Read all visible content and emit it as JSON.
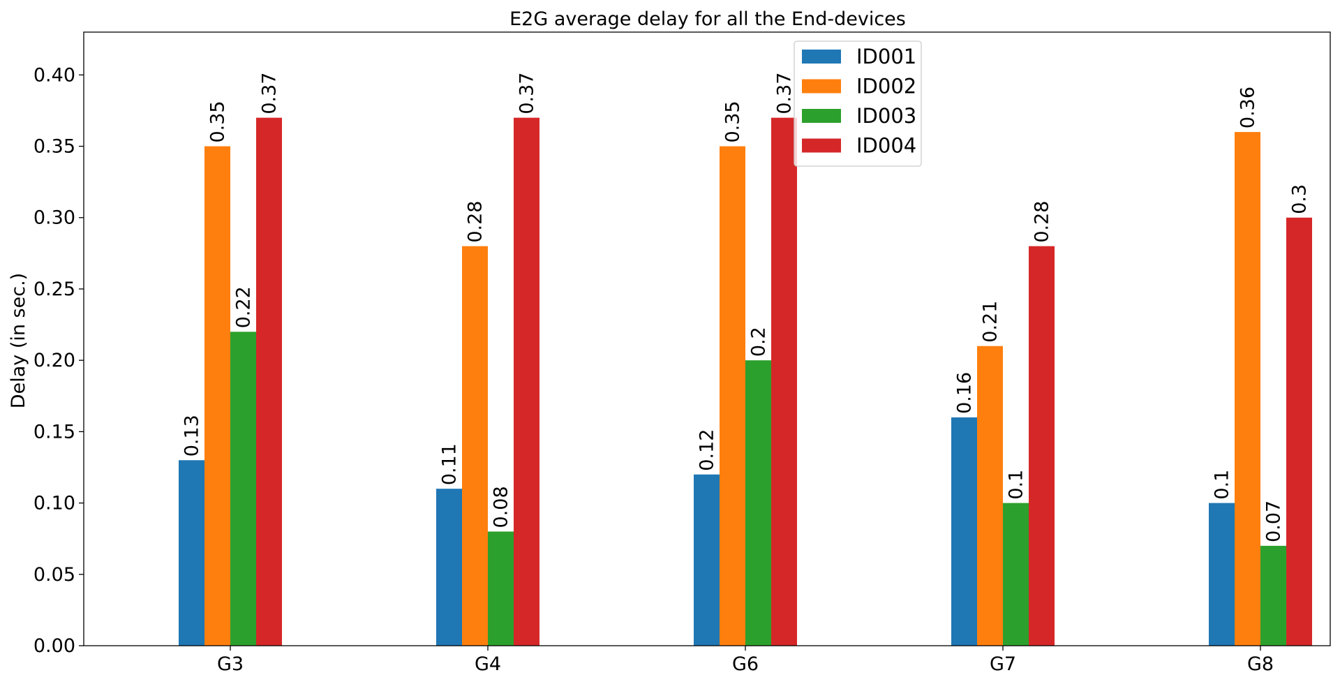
{
  "chart_data": {
    "type": "bar",
    "title": "E2G average delay for all the End-devices",
    "xlabel": "",
    "ylabel": "Delay (in sec.)",
    "categories": [
      "G3",
      "G4",
      "G6",
      "G7",
      "G8"
    ],
    "series": [
      {
        "name": "ID001",
        "color": "#1f77b4",
        "values": [
          0.13,
          0.11,
          0.12,
          0.16,
          0.1
        ],
        "labels": [
          "0.13",
          "0.11",
          "0.12",
          "0.16",
          "0.1"
        ]
      },
      {
        "name": "ID002",
        "color": "#ff7f0e",
        "values": [
          0.35,
          0.28,
          0.35,
          0.21,
          0.36
        ],
        "labels": [
          "0.35",
          "0.28",
          "0.35",
          "0.21",
          "0.36"
        ]
      },
      {
        "name": "ID003",
        "color": "#2ca02c",
        "values": [
          0.22,
          0.08,
          0.2,
          0.1,
          0.07
        ],
        "labels": [
          "0.22",
          "0.08",
          "0.2",
          "0.1",
          "0.07"
        ]
      },
      {
        "name": "ID004",
        "color": "#d62728",
        "values": [
          0.37,
          0.37,
          0.37,
          0.28,
          0.3
        ],
        "labels": [
          "0.37",
          "0.37",
          "0.37",
          "0.28",
          "0.3"
        ]
      }
    ],
    "ylim": [
      0,
      0.43
    ],
    "yticks": [
      0.0,
      0.05,
      0.1,
      0.15,
      0.2,
      0.25,
      0.3,
      0.35,
      0.4
    ],
    "ytick_labels": [
      "0.00",
      "0.05",
      "0.10",
      "0.15",
      "0.20",
      "0.25",
      "0.30",
      "0.35",
      "0.40"
    ],
    "grid": false,
    "legend_position": "top-center"
  }
}
